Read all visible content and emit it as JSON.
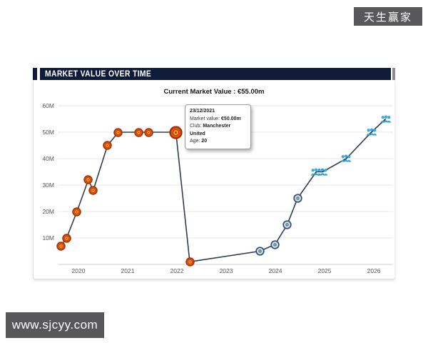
{
  "watermarks": {
    "top_right": "天生赢家",
    "bottom_left": "www.sjcyy.com"
  },
  "panel": {
    "title": "MARKET VALUE OVER TIME",
    "header_color": "#0e1c3a",
    "watermark_color": "#58585a"
  },
  "chart_data": {
    "type": "line",
    "title": "MARKET VALUE OVER TIME",
    "subtitle": "Current Market Value : €55.00m",
    "xlabel": "",
    "ylabel": "",
    "xlim": [
      2019.58,
      2026.39
    ],
    "ylim": [
      0,
      60
    ],
    "grid": "horizontal",
    "legend": "none",
    "x_ticks": [
      2020,
      2021,
      2022,
      2023,
      2024,
      2025,
      2026
    ],
    "y_ticks": [
      {
        "value": 10,
        "label": "10M"
      },
      {
        "value": 20,
        "label": "20M"
      },
      {
        "value": 30,
        "label": "30M"
      },
      {
        "value": 40,
        "label": "40M"
      },
      {
        "value": 50,
        "label": "50M"
      },
      {
        "value": 60,
        "label": "60M"
      }
    ],
    "colors": {
      "line": "#2e3d54",
      "grid": "#e7e7e7",
      "axis": "#cccccc",
      "tick_text": "#555555"
    },
    "clubs": {
      "man-united": {
        "icon": "man-united-crest-icon",
        "fill": "#e2590a",
        "ring": "#a22f05",
        "inner": "#f2a235",
        "detail": "#c03c08"
      },
      "getafe": {
        "icon": "getafe-crest-icon",
        "fill": "#dfe0c4",
        "ring": "#27508e",
        "inner": "#4e7db8",
        "detail": "#e3c93f"
      },
      "marseille": {
        "icon": "marseille-crest-icon",
        "fill": "#2fb3e8",
        "ring": "#1a85b8"
      }
    },
    "points": [
      {
        "x": 2019.64,
        "value": 7,
        "club": "man-united"
      },
      {
        "x": 2019.76,
        "value": 10,
        "club": "man-united"
      },
      {
        "x": 2019.97,
        "value": 20,
        "club": "man-united"
      },
      {
        "x": 2020.2,
        "value": 32,
        "club": "man-united"
      },
      {
        "x": 2020.3,
        "value": 28,
        "club": "man-united"
      },
      {
        "x": 2020.59,
        "value": 45,
        "club": "man-united"
      },
      {
        "x": 2020.81,
        "value": 50,
        "club": "man-united"
      },
      {
        "x": 2021.22,
        "value": 50,
        "club": "man-united"
      },
      {
        "x": 2021.43,
        "value": 50,
        "club": "man-united"
      },
      {
        "x": 2021.98,
        "value": 50,
        "club": "man-united",
        "highlight": true
      },
      {
        "x": 2022.26,
        "value": 1,
        "club": "man-united"
      },
      {
        "x": 2023.68,
        "value": 5,
        "club": "getafe"
      },
      {
        "x": 2023.99,
        "value": 7.5,
        "club": "getafe"
      },
      {
        "x": 2024.24,
        "value": 15,
        "club": "getafe"
      },
      {
        "x": 2024.45,
        "value": 25,
        "club": "getafe"
      },
      {
        "x": 2024.83,
        "value": 35,
        "club": "marseille"
      },
      {
        "x": 2024.96,
        "value": 35,
        "club": "marseille"
      },
      {
        "x": 2025.44,
        "value": 40,
        "club": "marseille"
      },
      {
        "x": 2025.95,
        "value": 50,
        "club": "marseille"
      },
      {
        "x": 2026.24,
        "value": 55,
        "club": "marseille"
      }
    ],
    "tooltip": {
      "date": "23/12/2021",
      "market_value_label": "Market value:",
      "market_value": "€50.00m",
      "club_label": "Club:",
      "club": "Manchester United",
      "age_label": "Age:",
      "age": "20"
    }
  }
}
